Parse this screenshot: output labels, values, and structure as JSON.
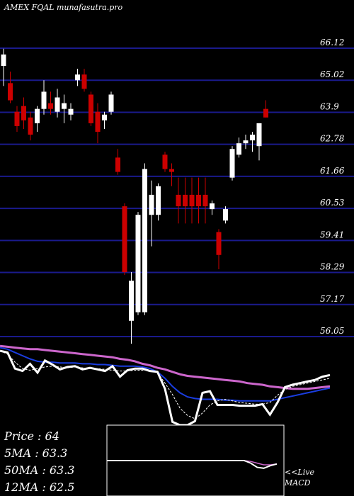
{
  "header": {
    "title": "AMEX  FQAL  munafasutra.pro"
  },
  "colors": {
    "background": "#000000",
    "grid": "#1a1a8c",
    "bull": "#ffffff",
    "bear": "#cc0000",
    "ma_short": "#ffffff",
    "ma_mid": "#1a3de0",
    "ma_long": "#cc66cc",
    "macd": "#ffffff",
    "macd_signal": "#cc66cc"
  },
  "stats": {
    "price": "Price   : 64",
    "ma5": "5MA : 63.3",
    "ma50": "50MA : 63.3",
    "ma12": "12MA : 62.5"
  },
  "macd_label": {
    "line1": "<<Live",
    "line2": "MACD"
  },
  "chart_data": {
    "type": "candlestick",
    "title": "AMEX  FQAL  munafasutra.pro",
    "y_axis_ticks": [
      "66.12",
      "65.02",
      "63.9",
      "62.78",
      "61.66",
      "60.53",
      "59.41",
      "58.29",
      "57.17",
      "56.05"
    ],
    "ylim": [
      55.5,
      66.6
    ],
    "candles": [
      {
        "o": 65.5,
        "h": 66.1,
        "l": 64.8,
        "c": 65.9
      },
      {
        "o": 64.9,
        "h": 65.3,
        "l": 64.2,
        "c": 64.3
      },
      {
        "o": 63.9,
        "h": 64.1,
        "l": 63.2,
        "c": 63.4
      },
      {
        "o": 64.1,
        "h": 64.4,
        "l": 63.3,
        "c": 63.6
      },
      {
        "o": 63.7,
        "h": 63.9,
        "l": 62.9,
        "c": 63.1
      },
      {
        "o": 63.5,
        "h": 64.1,
        "l": 63.2,
        "c": 64.0
      },
      {
        "o": 64.0,
        "h": 65.0,
        "l": 63.8,
        "c": 64.6
      },
      {
        "o": 64.2,
        "h": 64.6,
        "l": 63.8,
        "c": 64.0
      },
      {
        "o": 63.9,
        "h": 64.7,
        "l": 63.7,
        "c": 64.4
      },
      {
        "o": 64.0,
        "h": 64.5,
        "l": 63.5,
        "c": 64.2
      },
      {
        "o": 63.8,
        "h": 64.2,
        "l": 63.6,
        "c": 64.0
      },
      {
        "o": 65.0,
        "h": 65.4,
        "l": 64.8,
        "c": 65.2
      },
      {
        "o": 65.2,
        "h": 65.4,
        "l": 64.6,
        "c": 64.7
      },
      {
        "o": 64.5,
        "h": 64.6,
        "l": 63.4,
        "c": 63.5
      },
      {
        "o": 63.9,
        "h": 64.2,
        "l": 62.8,
        "c": 63.2
      },
      {
        "o": 63.6,
        "h": 63.9,
        "l": 63.3,
        "c": 63.8
      },
      {
        "o": 63.9,
        "h": 64.6,
        "l": 63.8,
        "c": 64.5
      },
      {
        "o": 62.3,
        "h": 62.6,
        "l": 61.7,
        "c": 61.8
      },
      {
        "o": 60.6,
        "h": 60.7,
        "l": 58.2,
        "c": 58.3
      },
      {
        "o": 56.6,
        "h": 58.3,
        "l": 55.8,
        "c": 58.0
      },
      {
        "o": 56.9,
        "h": 60.4,
        "l": 56.8,
        "c": 60.3
      },
      {
        "o": 56.9,
        "h": 62.1,
        "l": 56.8,
        "c": 61.9
      },
      {
        "o": 60.3,
        "h": 61.5,
        "l": 59.2,
        "c": 61.0
      },
      {
        "o": 60.3,
        "h": 61.4,
        "l": 60.1,
        "c": 61.3
      },
      {
        "o": 62.4,
        "h": 62.5,
        "l": 61.8,
        "c": 61.9
      },
      {
        "o": 61.9,
        "h": 62.1,
        "l": 61.3,
        "c": 61.8
      },
      {
        "o": 61.0,
        "h": 61.6,
        "l": 60.0,
        "c": 60.6
      },
      {
        "o": 61.0,
        "h": 61.6,
        "l": 60.0,
        "c": 60.6
      },
      {
        "o": 61.0,
        "h": 61.6,
        "l": 60.0,
        "c": 60.6
      },
      {
        "o": 61.0,
        "h": 61.6,
        "l": 60.0,
        "c": 60.6
      },
      {
        "o": 61.0,
        "h": 61.6,
        "l": 60.0,
        "c": 60.6
      },
      {
        "o": 60.5,
        "h": 60.8,
        "l": 60.3,
        "c": 60.7
      },
      {
        "o": 59.7,
        "h": 59.8,
        "l": 58.4,
        "c": 58.9
      },
      {
        "o": 60.1,
        "h": 60.6,
        "l": 60.0,
        "c": 60.5
      },
      {
        "o": 61.6,
        "h": 62.7,
        "l": 61.5,
        "c": 62.6
      },
      {
        "o": 62.4,
        "h": 63.0,
        "l": 62.3,
        "c": 62.8
      },
      {
        "o": 62.8,
        "h": 63.1,
        "l": 62.6,
        "c": 62.9
      },
      {
        "o": 62.9,
        "h": 63.2,
        "l": 62.5,
        "c": 63.1
      },
      {
        "o": 62.7,
        "h": 63.5,
        "l": 62.2,
        "c": 63.5
      },
      {
        "o": 64.0,
        "h": 64.3,
        "l": 63.7,
        "c": 63.7
      }
    ],
    "ma_panel": {
      "ylim": [
        0,
        1
      ],
      "price_line": [
        0.08,
        0.1,
        0.3,
        0.33,
        0.24,
        0.35,
        0.2,
        0.25,
        0.31,
        0.28,
        0.27,
        0.31,
        0.29,
        0.31,
        0.33,
        0.27,
        0.4,
        0.32,
        0.3,
        0.3,
        0.33,
        0.34,
        0.55,
        0.96,
        1.0,
        1.0,
        0.95,
        0.6,
        0.58,
        0.75,
        0.75,
        0.75,
        0.76,
        0.76,
        0.76,
        0.74,
        0.87,
        0.72,
        0.53,
        0.5,
        0.48,
        0.46,
        0.44,
        0.4,
        0.38
      ],
      "ma_short": [
        0.08,
        0.12,
        0.22,
        0.3,
        0.32,
        0.3,
        0.28,
        0.27,
        0.28,
        0.29,
        0.28,
        0.29,
        0.3,
        0.3,
        0.31,
        0.32,
        0.33,
        0.33,
        0.32,
        0.32,
        0.32,
        0.35,
        0.48,
        0.62,
        0.79,
        0.88,
        0.92,
        0.85,
        0.75,
        0.7,
        0.68,
        0.7,
        0.72,
        0.73,
        0.74,
        0.74,
        0.72,
        0.63,
        0.56,
        0.52,
        0.5,
        0.48,
        0.46,
        0.44,
        0.42
      ],
      "ma_mid": [
        0.04,
        0.06,
        0.1,
        0.14,
        0.18,
        0.21,
        0.22,
        0.22,
        0.23,
        0.23,
        0.23,
        0.24,
        0.24,
        0.25,
        0.25,
        0.26,
        0.27,
        0.27,
        0.27,
        0.28,
        0.3,
        0.34,
        0.42,
        0.52,
        0.6,
        0.65,
        0.67,
        0.68,
        0.68,
        0.68,
        0.69,
        0.69,
        0.7,
        0.7,
        0.7,
        0.7,
        0.7,
        0.68,
        0.66,
        0.64,
        0.62,
        0.6,
        0.58,
        0.56,
        0.54
      ],
      "ma_long": [
        0.02,
        0.03,
        0.04,
        0.05,
        0.06,
        0.06,
        0.07,
        0.08,
        0.09,
        0.1,
        0.11,
        0.12,
        0.13,
        0.14,
        0.15,
        0.16,
        0.18,
        0.19,
        0.21,
        0.24,
        0.26,
        0.29,
        0.31,
        0.34,
        0.37,
        0.39,
        0.4,
        0.41,
        0.42,
        0.43,
        0.44,
        0.45,
        0.46,
        0.48,
        0.49,
        0.5,
        0.52,
        0.53,
        0.54,
        0.55,
        0.55,
        0.55,
        0.54,
        0.53,
        0.52
      ]
    },
    "macd_panel": {
      "macd": [
        0.0,
        0.0,
        0.0,
        0.0,
        0.0,
        0.0,
        0.0,
        0.0,
        0.0,
        0.0,
        0.0,
        0.0,
        0.0,
        0.0,
        0.0,
        0.0,
        0.0,
        0.0,
        0.0,
        0.0,
        0.0,
        0.0,
        -0.3,
        -0.8,
        -0.9,
        -0.6,
        -0.4
      ],
      "signal": [
        0.0,
        0.0,
        0.0,
        0.0,
        0.0,
        0.0,
        0.0,
        0.0,
        0.0,
        0.0,
        0.0,
        0.0,
        0.0,
        0.0,
        0.0,
        0.0,
        0.0,
        0.0,
        0.0,
        0.0,
        0.0,
        0.0,
        -0.1,
        -0.3,
        -0.5,
        -0.5,
        -0.4
      ]
    }
  }
}
